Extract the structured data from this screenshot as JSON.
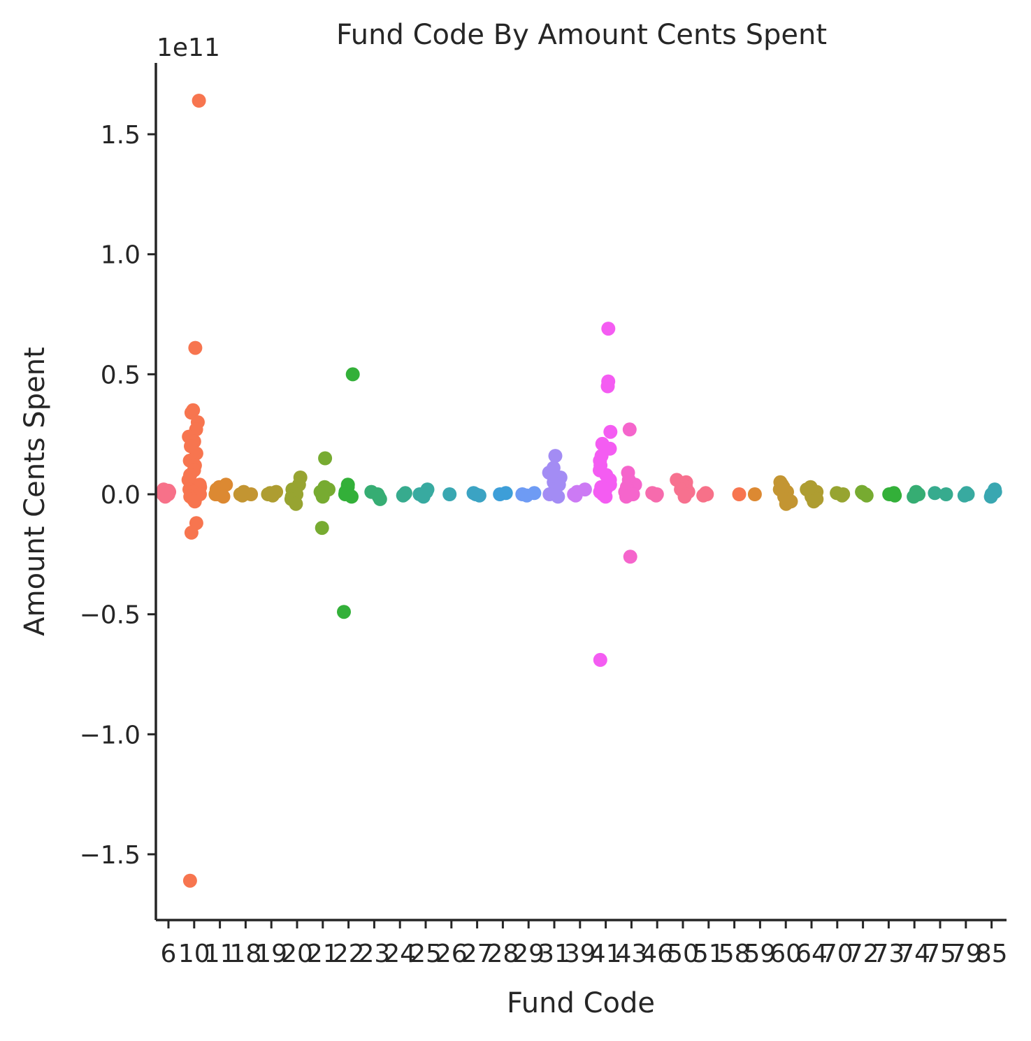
{
  "chart_data": {
    "type": "scatter",
    "subtype": "stripplot",
    "title": "Fund Code By Amount Cents Spent",
    "xlabel": "Fund Code",
    "ylabel": "Amount Cents Spent",
    "y_offset_label": "1e11",
    "y_scale": 100000000000,
    "ylim": [
      -1.78,
      1.8
    ],
    "yticks": [
      -1.5,
      -1.0,
      -0.5,
      0.0,
      0.5,
      1.0,
      1.5
    ],
    "ytick_labels": [
      "−1.5",
      "−1.0",
      "−0.5",
      "0.0",
      "0.5",
      "1.0",
      "1.5"
    ],
    "grid": false,
    "legend": "none",
    "categories": [
      "6",
      "10",
      "11",
      "18",
      "19",
      "20",
      "21",
      "22",
      "23",
      "24",
      "25",
      "26",
      "27",
      "28",
      "29",
      "31",
      "39",
      "41",
      "43",
      "46",
      "50",
      "51",
      "58",
      "59",
      "60",
      "64",
      "70",
      "72",
      "73",
      "74",
      "75",
      "79",
      "85"
    ],
    "colors": [
      "#f77189",
      "#f7754f",
      "#dc8932",
      "#c39532",
      "#ae9d31",
      "#97a431",
      "#77ab31",
      "#33b039",
      "#36ad73",
      "#37ab8e",
      "#38aaa0",
      "#39a7b1",
      "#3ba3c3",
      "#3d9ed8",
      "#6e9bf4",
      "#a38cf4",
      "#cc7af4",
      "#f45cf2",
      "#f565cc",
      "#f66bad",
      "#f7718f",
      "#f77189",
      "#f7754f",
      "#dc8932",
      "#c39532",
      "#ae9d31",
      "#97a431",
      "#77ab31",
      "#33b039",
      "#36ad73",
      "#37ab8e",
      "#38aaa0",
      "#39a7b1"
    ],
    "series": [
      {
        "category": "6",
        "values": [
          0.0,
          0.01,
          0.02,
          -0.01,
          0.005,
          0.015,
          0.0
        ]
      },
      {
        "category": "10",
        "values": [
          1.64,
          0.61,
          0.35,
          0.34,
          0.3,
          0.27,
          0.24,
          0.22,
          0.2,
          0.17,
          0.14,
          0.12,
          0.1,
          0.08,
          0.06,
          0.04,
          0.03,
          0.02,
          0.01,
          0.0,
          -0.01,
          -0.02,
          -0.03,
          -0.12,
          -0.16,
          -1.61
        ]
      },
      {
        "category": "11",
        "values": [
          0.04,
          0.03,
          0.02,
          0.01,
          0.0,
          0.0,
          -0.01
        ]
      },
      {
        "category": "18",
        "values": [
          0.01,
          0.0,
          0.0,
          0.0,
          -0.005
        ]
      },
      {
        "category": "19",
        "values": [
          0.01,
          0.0,
          0.0,
          -0.005,
          0.005
        ]
      },
      {
        "category": "20",
        "values": [
          0.07,
          0.04,
          0.02,
          0.01,
          0.0,
          -0.01,
          -0.02,
          -0.04
        ]
      },
      {
        "category": "21",
        "values": [
          0.15,
          0.03,
          0.02,
          0.01,
          0.0,
          -0.01,
          -0.14
        ]
      },
      {
        "category": "22",
        "values": [
          0.5,
          0.04,
          0.03,
          0.01,
          0.0,
          -0.01,
          -0.49
        ]
      },
      {
        "category": "23",
        "values": [
          0.01,
          0.0,
          -0.01,
          -0.02
        ]
      },
      {
        "category": "24",
        "values": [
          0.005,
          0.0,
          -0.005
        ]
      },
      {
        "category": "25",
        "values": [
          0.02,
          0.01,
          0.0,
          -0.01
        ]
      },
      {
        "category": "26",
        "values": [
          0.0
        ]
      },
      {
        "category": "27",
        "values": [
          0.005,
          0.0,
          -0.005
        ]
      },
      {
        "category": "28",
        "values": [
          0.005,
          0.0
        ]
      },
      {
        "category": "29",
        "values": [
          0.005,
          0.0,
          -0.005
        ]
      },
      {
        "category": "31",
        "values": [
          0.16,
          0.11,
          0.09,
          0.07,
          0.05,
          0.04,
          0.02,
          0.01,
          0.0,
          -0.01
        ]
      },
      {
        "category": "39",
        "values": [
          0.02,
          0.01,
          0.0,
          -0.005
        ]
      },
      {
        "category": "41",
        "values": [
          0.69,
          0.47,
          0.45,
          0.26,
          0.21,
          0.19,
          0.16,
          0.14,
          0.12,
          0.1,
          0.08,
          0.06,
          0.04,
          0.03,
          0.02,
          0.01,
          0.0,
          -0.01,
          -0.69
        ]
      },
      {
        "category": "43",
        "values": [
          0.27,
          0.09,
          0.06,
          0.04,
          0.03,
          0.02,
          0.01,
          0.0,
          -0.01,
          -0.26
        ]
      },
      {
        "category": "46",
        "values": [
          0.005,
          0.0,
          -0.005
        ]
      },
      {
        "category": "50",
        "values": [
          0.06,
          0.05,
          0.04,
          0.03,
          0.02,
          0.01,
          0.0,
          -0.01
        ]
      },
      {
        "category": "51",
        "values": [
          0.005,
          0.0,
          -0.005
        ]
      },
      {
        "category": "58",
        "values": [
          0.0
        ]
      },
      {
        "category": "59",
        "values": [
          0.0
        ]
      },
      {
        "category": "60",
        "values": [
          0.05,
          0.04,
          0.03,
          0.02,
          0.01,
          0.0,
          -0.01,
          -0.02,
          -0.03,
          -0.04
        ]
      },
      {
        "category": "64",
        "values": [
          0.03,
          0.02,
          0.01,
          0.0,
          -0.01,
          -0.02,
          -0.03
        ]
      },
      {
        "category": "70",
        "values": [
          0.005,
          0.0,
          -0.005
        ]
      },
      {
        "category": "72",
        "values": [
          0.01,
          0.005,
          0.0,
          -0.005
        ]
      },
      {
        "category": "73",
        "values": [
          0.005,
          0.0,
          -0.005
        ]
      },
      {
        "category": "74",
        "values": [
          0.01,
          0.0,
          -0.01
        ]
      },
      {
        "category": "75",
        "values": [
          0.005,
          0.0
        ]
      },
      {
        "category": "79",
        "values": [
          0.005,
          0.0,
          -0.005
        ]
      },
      {
        "category": "85",
        "values": [
          0.02,
          0.01,
          0.0,
          -0.01
        ]
      }
    ]
  }
}
